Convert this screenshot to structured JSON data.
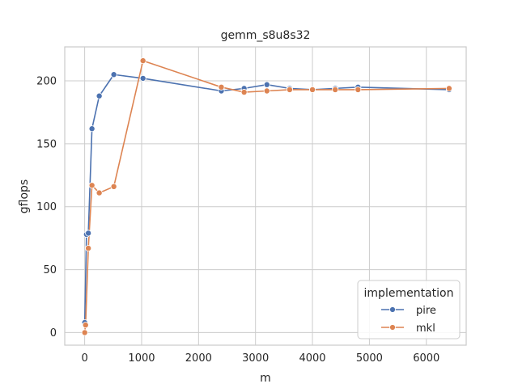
{
  "chart_data": {
    "type": "line",
    "title": "gemm_s8u8s32",
    "xlabel": "m",
    "ylabel": "gflops",
    "xlim": [
      -350,
      6700
    ],
    "ylim": [
      -10,
      227
    ],
    "xticks": [
      "0",
      "1000",
      "2000",
      "3000",
      "4000",
      "5000",
      "6000"
    ],
    "yticks": [
      "0",
      "50",
      "100",
      "150",
      "200"
    ],
    "grid": true,
    "legend": {
      "title": "implementation",
      "placement": "lower-right"
    },
    "series": [
      {
        "name": "pire",
        "color": "#4c72b0",
        "x": [
          1,
          32,
          64,
          128,
          256,
          512,
          1024,
          2400,
          2800,
          3200,
          3600,
          4000,
          4400,
          4800,
          6400
        ],
        "y": [
          8,
          78,
          79,
          162,
          188,
          205,
          202,
          192,
          194,
          197,
          194,
          193,
          194,
          195,
          193
        ]
      },
      {
        "name": "mkl",
        "color": "#dd8452",
        "x": [
          1,
          16,
          64,
          128,
          256,
          512,
          1024,
          2400,
          2800,
          3200,
          3600,
          4000,
          4400,
          4800,
          6400
        ],
        "y": [
          0,
          6,
          67,
          117,
          111,
          116,
          216,
          195,
          191,
          192,
          193,
          193,
          193,
          193,
          194
        ]
      }
    ]
  }
}
